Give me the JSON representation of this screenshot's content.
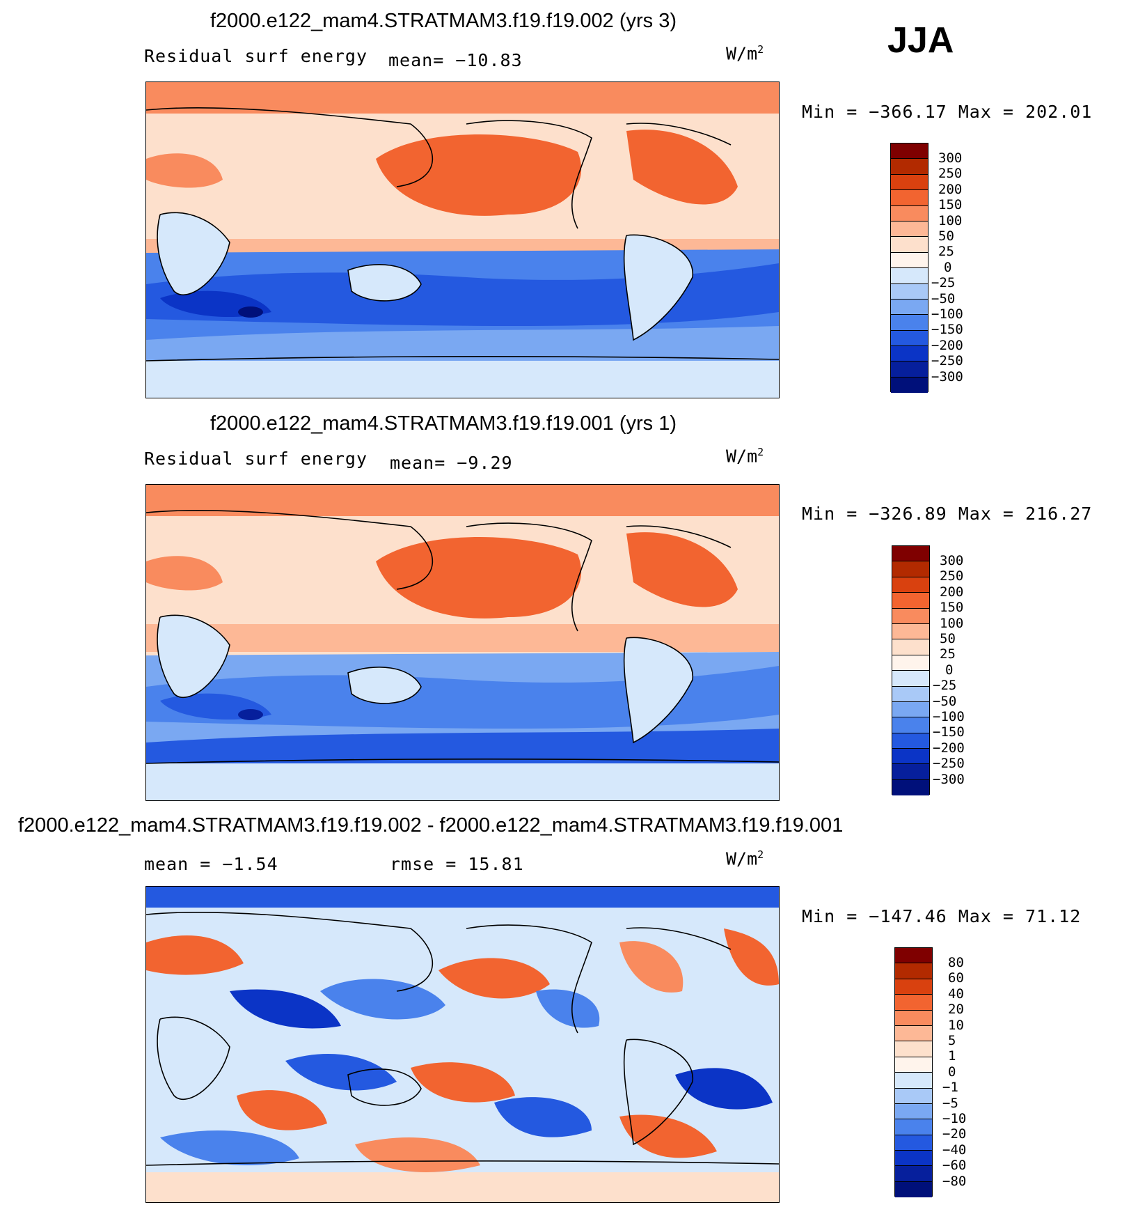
{
  "season": "JJA",
  "panels": [
    {
      "title": "f2000.e122_mam4.STRATMAM3.f19.f19.002 (yrs 3)",
      "variable": "Residual surf energy",
      "stat_text": "mean= −10.83",
      "units_base": "W/m",
      "units_exp": "2",
      "minmax": "Min = −366.17 Max = 202.01",
      "levels": [
        "300",
        "250",
        "200",
        "150",
        "100",
        "50",
        "25",
        "0",
        "−25",
        "−50",
        "−100",
        "−150",
        "−200",
        "−250",
        "−300"
      ],
      "colors": [
        "#7f0000",
        "#b22a00",
        "#d9410f",
        "#f26430",
        "#f98b5e",
        "#fdb896",
        "#fde0cc",
        "#fff4ec",
        "#d6e8fb",
        "#a9c9f7",
        "#7aa8f2",
        "#4a82ec",
        "#2459e0",
        "#0b34c6",
        "#061f9c",
        "#00107a"
      ]
    },
    {
      "title": "f2000.e122_mam4.STRATMAM3.f19.f19.001 (yrs 1)",
      "variable": "Residual surf energy",
      "stat_text": "mean=  −9.29",
      "units_base": "W/m",
      "units_exp": "2",
      "minmax": "Min = −326.89 Max = 216.27",
      "levels": [
        "300",
        "250",
        "200",
        "150",
        "100",
        "50",
        "25",
        "0",
        "−25",
        "−50",
        "−100",
        "−150",
        "−200",
        "−250",
        "−300"
      ],
      "colors": [
        "#7f0000",
        "#b22a00",
        "#d9410f",
        "#f26430",
        "#f98b5e",
        "#fdb896",
        "#fde0cc",
        "#fff4ec",
        "#d6e8fb",
        "#a9c9f7",
        "#7aa8f2",
        "#4a82ec",
        "#2459e0",
        "#0b34c6",
        "#061f9c",
        "#00107a"
      ]
    },
    {
      "title": "f2000.e122_mam4.STRATMAM3.f19.f19.002 - f2000.e122_mam4.STRATMAM3.f19.f19.001",
      "stat_mean": "mean =  −1.54",
      "stat_rmse": "rmse =  15.81",
      "units_base": "W/m",
      "units_exp": "2",
      "minmax": "Min = −147.46 Max =  71.12",
      "levels": [
        "80",
        "60",
        "40",
        "20",
        "10",
        "5",
        "1",
        "0",
        "−1",
        "−5",
        "−10",
        "−20",
        "−40",
        "−60",
        "−80"
      ],
      "colors": [
        "#7f0000",
        "#b22a00",
        "#d9410f",
        "#f26430",
        "#f98b5e",
        "#fdb896",
        "#fde0cc",
        "#fff4ec",
        "#d6e8fb",
        "#a9c9f7",
        "#7aa8f2",
        "#4a82ec",
        "#2459e0",
        "#0b34c6",
        "#061f9c",
        "#00107a"
      ]
    }
  ]
}
